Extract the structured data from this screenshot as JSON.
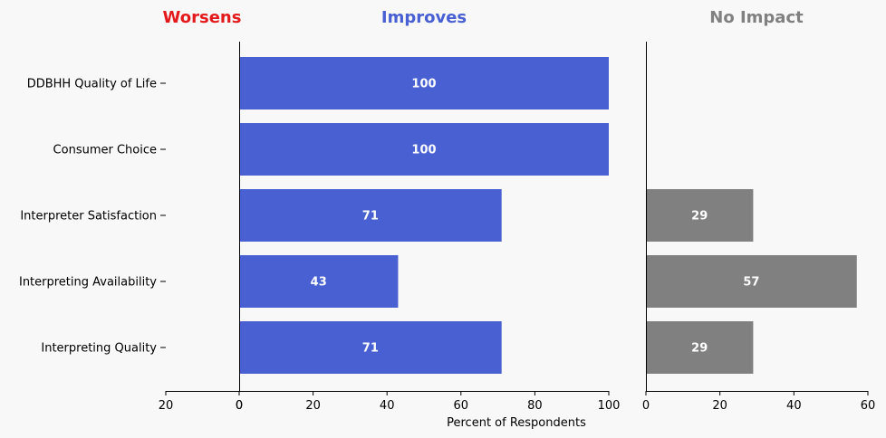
{
  "chart_data": {
    "type": "bar",
    "orientation": "horizontal",
    "categories": [
      "DDBHH Quality of Life",
      "Consumer Choice",
      "Interpreter Satisfaction",
      "Interpreting Availability",
      "Interpreting Quality"
    ],
    "panels": [
      {
        "name": "Worsens",
        "color": "#e31a1c",
        "xlim": [
          20,
          0
        ],
        "ticks": [
          20,
          0
        ],
        "values": [
          0,
          0,
          0,
          0,
          0
        ]
      },
      {
        "name": "Improves",
        "color": "#4860d1",
        "xlim": [
          0,
          100
        ],
        "ticks": [
          0,
          20,
          40,
          60,
          80,
          100
        ],
        "values": [
          100,
          100,
          71,
          43,
          71
        ]
      },
      {
        "name": "No Impact",
        "color": "#808080",
        "xlim": [
          0,
          60
        ],
        "ticks": [
          0,
          20,
          40,
          60
        ],
        "values": [
          0,
          0,
          29,
          57,
          29
        ]
      }
    ],
    "xlabel": "Percent of Respondents",
    "grid": false
  }
}
